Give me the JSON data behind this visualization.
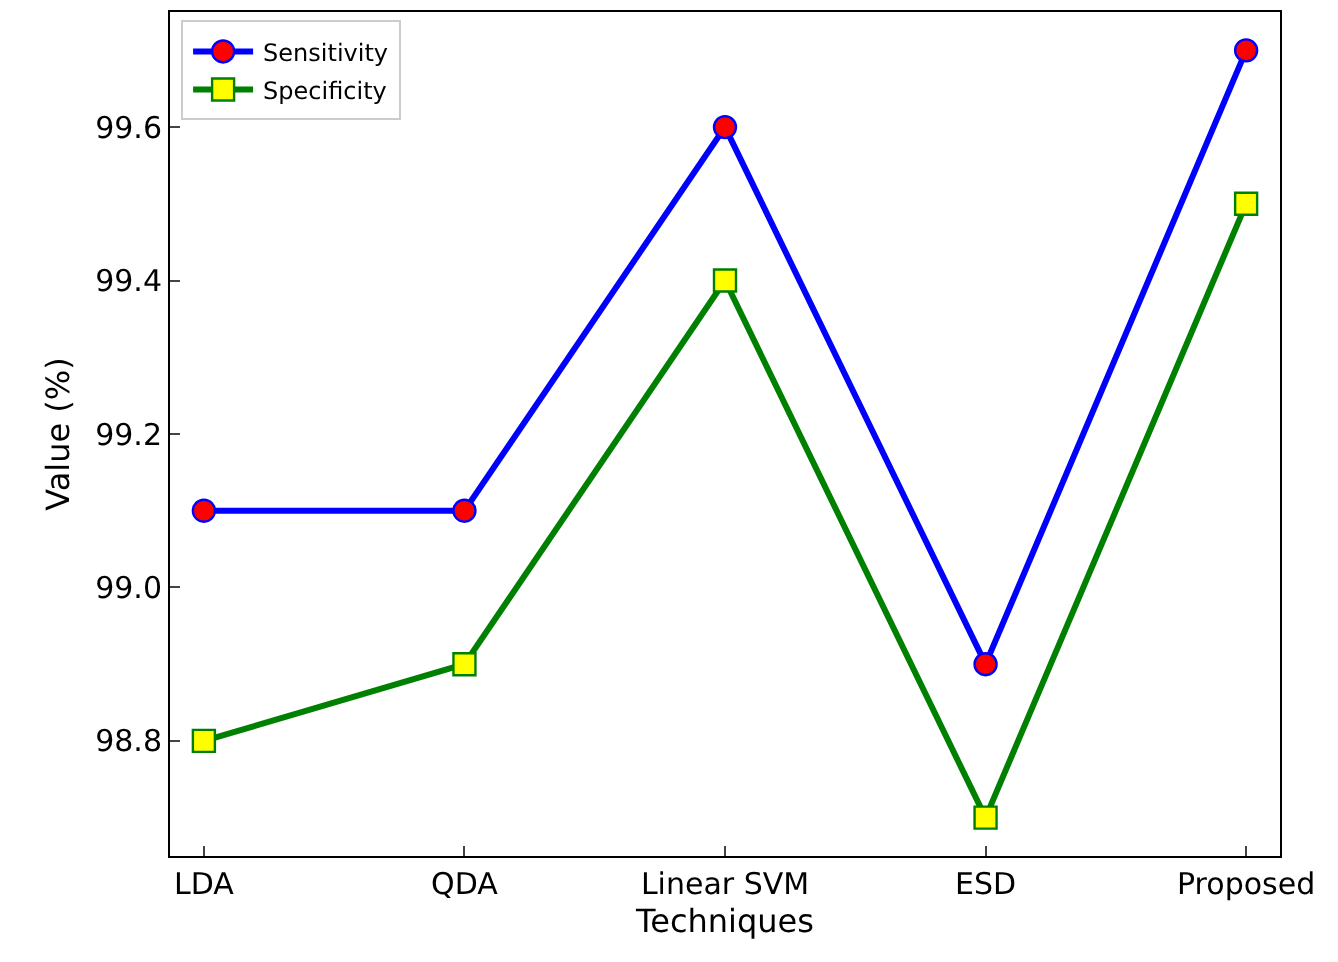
{
  "chart_data": {
    "type": "line",
    "xlabel": "Techniques",
    "ylabel": "Value (%)",
    "categories": [
      "LDA",
      "QDA",
      "Linear SVM",
      "ESD",
      "Proposed"
    ],
    "series": [
      {
        "name": "Sensitivity",
        "color": "#0000ff",
        "marker": "circle",
        "colors": [
          "#ff0000",
          "#ff0000",
          "#ff0000",
          "#ff0000",
          "#ff0000"
        ],
        "values": [
          99.1,
          99.1,
          99.6,
          98.9,
          99.7
        ]
      },
      {
        "name": "Specificity",
        "color": "#008000",
        "marker": "square",
        "colors": [
          "#ffff00",
          "#ffff00",
          "#ffff00",
          "#ffff00",
          "#ffff00"
        ],
        "values": [
          98.8,
          98.9,
          99.4,
          98.7,
          99.5
        ]
      }
    ],
    "ylim": [
      98.65,
      99.75
    ],
    "yticks": [
      {
        "value": 98.8,
        "label": "98.8"
      },
      {
        "value": 99.0,
        "label": "99.0"
      },
      {
        "value": 99.2,
        "label": "99.2"
      },
      {
        "value": 99.4,
        "label": "99.4"
      },
      {
        "value": 99.6,
        "label": "99.6"
      }
    ],
    "legend": "top left",
    "line_style": "solid"
  }
}
